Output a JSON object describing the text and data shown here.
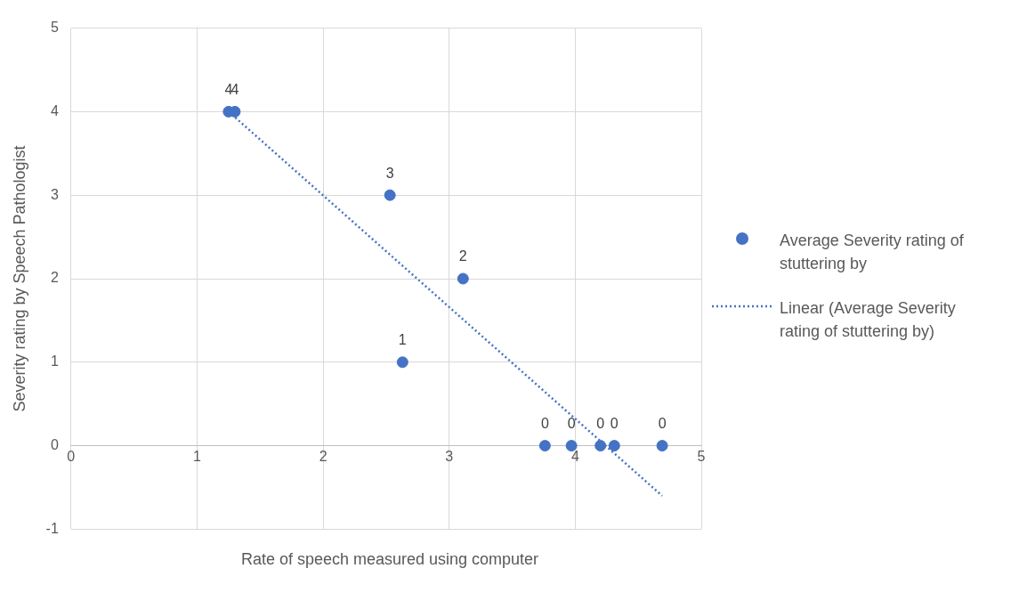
{
  "chart_data": {
    "type": "scatter",
    "xlabel": "Rate of speech measured using computer",
    "ylabel": "Severity rating by Speech Pathologist",
    "xlim": [
      0,
      5
    ],
    "xticks": [
      0,
      1,
      2,
      3,
      4,
      5
    ],
    "ylim": [
      -1,
      5
    ],
    "yticks": [
      -1,
      0,
      1,
      2,
      3,
      4,
      5
    ],
    "grid": true,
    "legend": "right",
    "marker": "circle",
    "series": [
      {
        "name": "Average Severity rating of stuttering by",
        "color": "#4472c4",
        "x": [
          1.25,
          1.3,
          2.53,
          3.11,
          2.63,
          3.76,
          3.97,
          4.2,
          4.31,
          4.69
        ],
        "values": [
          4,
          4,
          3,
          2,
          1,
          0,
          0,
          0,
          0,
          0
        ],
        "value_labels": [
          "4",
          "4",
          "3",
          "2",
          "1",
          "0",
          "0",
          "0",
          "0",
          "0"
        ]
      },
      {
        "name": "Linear (Average Severity rating of stuttering by)",
        "type": "line",
        "line_style": "dotted",
        "marker": "none",
        "color": "#4472c4",
        "x": [
          1.25,
          4.69
        ],
        "values": [
          4.0,
          -0.6
        ]
      }
    ]
  }
}
